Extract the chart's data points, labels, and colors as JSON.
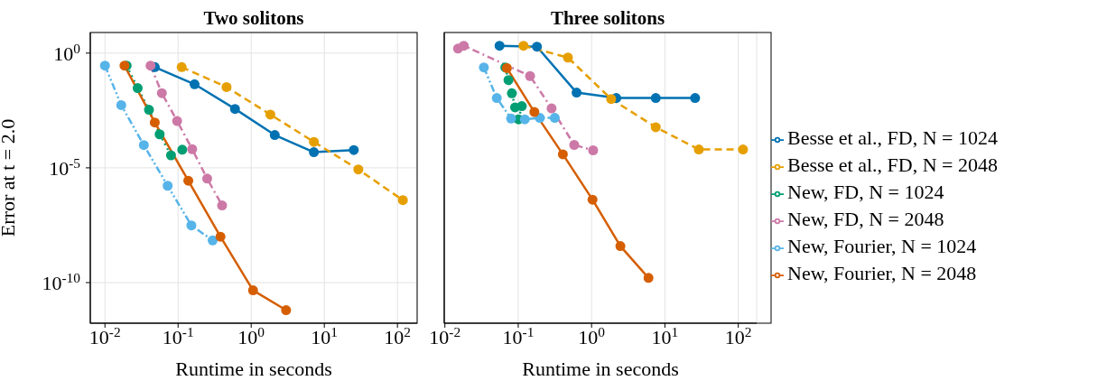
{
  "chart_data": [
    {
      "type": "line",
      "title": "Two solitons",
      "xlabel": "Runtime in seconds",
      "ylabel": "Error at t = 2.0",
      "log": "xy",
      "grid": true,
      "marker": "circle",
      "legend": false,
      "xlim": [
        0.0063,
        186
      ],
      "ylim": [
        1.7e-12,
        7.9
      ],
      "xticks": [
        {
          "value": 0.01,
          "label": "10$^{-2}$"
        },
        {
          "value": 0.1,
          "label": "10$^{-1}$"
        },
        {
          "value": 1,
          "label": "10$^{0}$"
        },
        {
          "value": 10,
          "label": "10$^{1}$"
        },
        {
          "value": 100,
          "label": "10$^{2}$"
        }
      ],
      "yticks": [
        {
          "value": 1e-10,
          "label": "10$^{-10}$"
        },
        {
          "value": 1e-05,
          "label": "10$^{-5}$"
        },
        {
          "value": 1,
          "label": "10$^{0}$"
        }
      ],
      "series": [
        {
          "color": "#0072b2",
          "line_style": "solid",
          "x": [
            0.048,
            0.168,
            0.6,
            2.1,
            7.2,
            25.3
          ],
          "values": [
            0.245,
            0.044,
            0.0037,
            0.00027,
            4.8e-05,
            6e-05
          ]
        },
        {
          "color": "#e69f00",
          "line_style": "dashed",
          "x": [
            0.112,
            0.46,
            1.83,
            7.2,
            29.2,
            118.6
          ],
          "values": [
            0.245,
            0.033,
            0.0021,
            0.000135,
            8.5e-06,
            3.9e-07
          ]
        },
        {
          "color": "#009e73",
          "line_style": "dotted",
          "x": [
            0.0198,
            0.028,
            0.04,
            0.056,
            0.08,
            0.114
          ],
          "values": [
            0.284,
            0.03,
            0.0034,
            0.00029,
            3.5e-05,
            6.2e-05
          ]
        },
        {
          "color": "#cc79a7",
          "line_style": "dashdot",
          "x": [
            0.042,
            0.06,
            0.097,
            0.156,
            0.25,
            0.4
          ],
          "values": [
            0.284,
            0.018,
            0.0011,
            6.5e-05,
            3.4e-06,
            2.3e-07
          ]
        },
        {
          "color": "#56b4e9",
          "line_style": "dashdotdot",
          "x": [
            0.01,
            0.0167,
            0.034,
            0.072,
            0.152,
            0.297
          ],
          "values": [
            0.284,
            0.0054,
            9.8e-05,
            1.66e-06,
            3.1e-08,
            6.9e-09
          ]
        },
        {
          "color": "#d55e00",
          "line_style": "solid",
          "x": [
            0.0185,
            0.048,
            0.138,
            0.38,
            1.06,
            3.0
          ],
          "values": [
            0.284,
            0.00095,
            2.75e-06,
            1e-08,
            4.6e-11,
            6.3e-12
          ]
        }
      ]
    },
    {
      "type": "line",
      "title": "Three solitons",
      "xlabel": "Runtime in seconds",
      "log": "xy",
      "grid": true,
      "marker": "circle",
      "legend": "right",
      "tick_labels": "x",
      "xlim": [
        0.0098,
        178
      ],
      "ylim": [
        1.7e-12,
        7.9
      ],
      "xticks": [
        {
          "value": 0.01,
          "label": "10$^{-2}$"
        },
        {
          "value": 0.1,
          "label": "10$^{-1}$"
        },
        {
          "value": 1,
          "label": "10$^{0}$"
        },
        {
          "value": 10,
          "label": "10$^{1}$"
        },
        {
          "value": 100,
          "label": "10$^{2}$"
        }
      ],
      "yticks": [
        {
          "value": 1e-10,
          "label": "10$^{-10}$"
        },
        {
          "value": 1e-05,
          "label": "10$^{-5}$"
        },
        {
          "value": 1,
          "label": "10$^{0}$"
        }
      ],
      "series": [
        {
          "name": "Besse et al., FD, N = 1024",
          "color": "#0072b2",
          "line_style": "solid",
          "x": [
            0.0556,
            0.18,
            0.625,
            2.17,
            7.5,
            25.8
          ],
          "values": [
            2.1,
            1.9,
            0.019,
            0.011,
            0.011,
            0.011
          ]
        },
        {
          "name": "Besse et al., FD, N = 2048",
          "color": "#e69f00",
          "line_style": "dashed",
          "x": [
            0.118,
            0.476,
            1.85,
            7.5,
            29,
            116
          ],
          "values": [
            2.1,
            0.64,
            0.01,
            0.00059,
            6.3e-05,
            6.3e-05
          ]
        },
        {
          "name": "New, FD, N = 1024",
          "color": "#009e73",
          "line_style": "dotted",
          "x": [
            0.0667,
            0.0736,
            0.082,
            0.0906,
            0.101,
            0.112
          ],
          "values": [
            0.237,
            0.067,
            0.0177,
            0.0043,
            0.0013,
            0.0049
          ]
        },
        {
          "name": "New, FD, N = 2048",
          "color": "#cc79a7",
          "line_style": "dashdot",
          "x": [
            0.0151,
            0.0181,
            0.145,
            0.285,
            0.58,
            1.05
          ],
          "values": [
            1.57,
            2.1,
            0.1,
            0.0039,
            0.0001,
            5.8e-05
          ]
        },
        {
          "name": "New, Fourier, N = 1024",
          "color": "#56b4e9",
          "line_style": "dashdotdot",
          "x": [
            0.034,
            0.051,
            0.08,
            0.123,
            0.197,
            0.315
          ],
          "values": [
            0.237,
            0.011,
            0.0014,
            0.0013,
            0.0015,
            0.0015
          ]
        },
        {
          "name": "New, Fourier, N = 2048",
          "color": "#d55e00",
          "line_style": "solid",
          "x": [
            0.07,
            0.166,
            0.406,
            1.03,
            2.47,
            5.97
          ],
          "values": [
            0.223,
            0.0027,
            3.9e-05,
            4.1e-07,
            3.9e-09,
            1.6e-10
          ]
        }
      ]
    }
  ]
}
